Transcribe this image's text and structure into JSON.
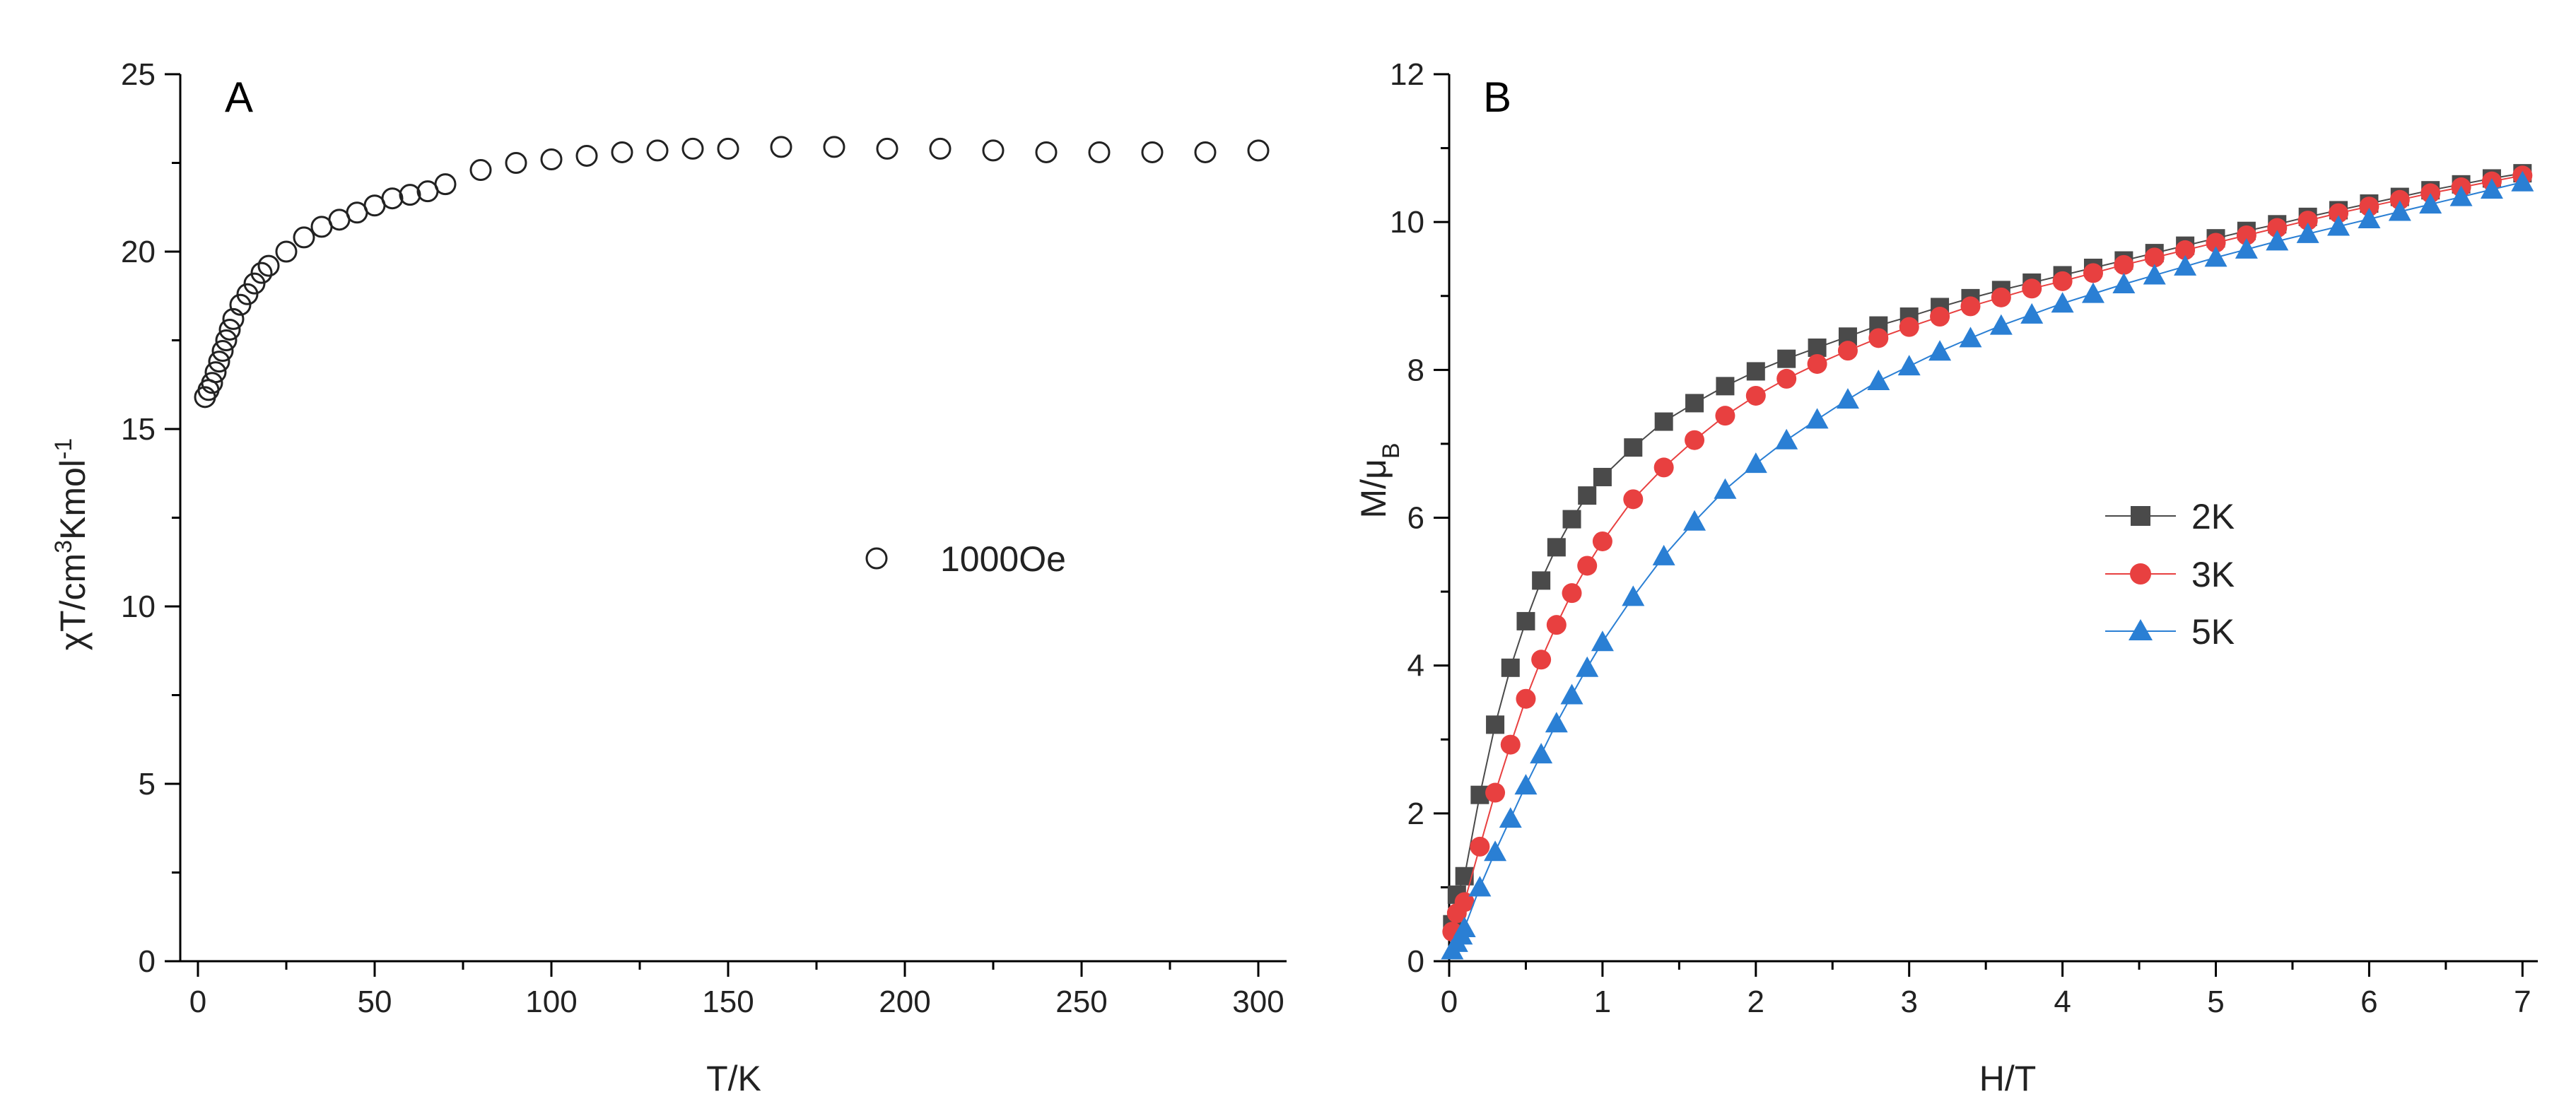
{
  "chart_data": [
    {
      "type": "scatter",
      "panel_label": "A",
      "xlabel": "T/K",
      "ylabel_parts": {
        "pre": "χT/cm",
        "sup1": "3",
        "mid": "Kmol",
        "sup2": "-1"
      },
      "xlim": [
        -5,
        308
      ],
      "ylim": [
        0,
        25
      ],
      "xticks": [
        0,
        50,
        100,
        150,
        200,
        250,
        300
      ],
      "yticks": [
        0,
        5,
        10,
        15,
        20,
        25
      ],
      "legend_position": "center-right",
      "series": [
        {
          "name": "1000Oe",
          "marker": "open-circle",
          "x": [
            2,
            3,
            4,
            5,
            6,
            7,
            8,
            9,
            10,
            12,
            14,
            16,
            18,
            20,
            25,
            30,
            35,
            40,
            45,
            50,
            55,
            60,
            65,
            70,
            80,
            90,
            100,
            110,
            120,
            130,
            140,
            150,
            165,
            180,
            195,
            210,
            225,
            240,
            255,
            270,
            285,
            300
          ],
          "y": [
            15.9,
            16.1,
            16.3,
            16.6,
            16.9,
            17.2,
            17.5,
            17.8,
            18.1,
            18.5,
            18.8,
            19.1,
            19.4,
            19.6,
            20.0,
            20.4,
            20.7,
            20.9,
            21.1,
            21.3,
            21.5,
            21.6,
            21.7,
            21.9,
            22.3,
            22.5,
            22.6,
            22.7,
            22.8,
            22.85,
            22.9,
            22.9,
            22.95,
            22.95,
            22.9,
            22.9,
            22.85,
            22.8,
            22.8,
            22.8,
            22.8,
            22.85
          ]
        }
      ]
    },
    {
      "type": "line",
      "panel_label": "B",
      "xlabel": "H/T",
      "ylabel_parts": {
        "pre": "M/μ",
        "sub": "B"
      },
      "xlim": [
        0,
        7.1
      ],
      "ylim": [
        0,
        12
      ],
      "xticks": [
        0,
        1,
        2,
        3,
        4,
        5,
        6,
        7
      ],
      "yticks": [
        0,
        2,
        4,
        6,
        8,
        10,
        12
      ],
      "legend_position": "center-right",
      "series": [
        {
          "name": "2K",
          "marker": "square",
          "color": "#4a4a4a",
          "x": [
            0.02,
            0.05,
            0.1,
            0.2,
            0.3,
            0.4,
            0.5,
            0.6,
            0.7,
            0.8,
            0.9,
            1.0,
            1.2,
            1.4,
            1.6,
            1.8,
            2.0,
            2.2,
            2.4,
            2.6,
            2.8,
            3.0,
            3.2,
            3.4,
            3.6,
            3.8,
            4.0,
            4.2,
            4.4,
            4.6,
            4.8,
            5.0,
            5.2,
            5.4,
            5.6,
            5.8,
            6.0,
            6.2,
            6.4,
            6.6,
            6.8,
            7.0
          ],
          "y": [
            0.5,
            0.9,
            1.15,
            2.25,
            3.2,
            3.97,
            4.6,
            5.15,
            5.6,
            5.98,
            6.3,
            6.55,
            6.95,
            7.3,
            7.55,
            7.78,
            7.98,
            8.15,
            8.3,
            8.45,
            8.6,
            8.72,
            8.85,
            8.97,
            9.08,
            9.18,
            9.28,
            9.38,
            9.48,
            9.58,
            9.68,
            9.78,
            9.88,
            9.97,
            10.07,
            10.16,
            10.25,
            10.34,
            10.43,
            10.51,
            10.59,
            10.66
          ]
        },
        {
          "name": "3K",
          "marker": "circle",
          "color": "#e84040",
          "x": [
            0.02,
            0.05,
            0.1,
            0.2,
            0.3,
            0.4,
            0.5,
            0.6,
            0.7,
            0.8,
            0.9,
            1.0,
            1.2,
            1.4,
            1.6,
            1.8,
            2.0,
            2.2,
            2.4,
            2.6,
            2.8,
            3.0,
            3.2,
            3.4,
            3.6,
            3.8,
            4.0,
            4.2,
            4.4,
            4.6,
            4.8,
            5.0,
            5.2,
            5.4,
            5.6,
            5.8,
            6.0,
            6.2,
            6.4,
            6.6,
            6.8,
            7.0
          ],
          "y": [
            0.4,
            0.65,
            0.8,
            1.55,
            2.28,
            2.93,
            3.55,
            4.08,
            4.55,
            4.98,
            5.35,
            5.68,
            6.25,
            6.68,
            7.05,
            7.38,
            7.65,
            7.88,
            8.08,
            8.26,
            8.43,
            8.58,
            8.72,
            8.86,
            8.98,
            9.1,
            9.2,
            9.31,
            9.42,
            9.52,
            9.62,
            9.72,
            9.82,
            9.92,
            10.02,
            10.12,
            10.21,
            10.3,
            10.39,
            10.47,
            10.55,
            10.63
          ]
        },
        {
          "name": "5K",
          "marker": "triangle",
          "color": "#2a7fd4",
          "x": [
            0.02,
            0.05,
            0.08,
            0.1,
            0.2,
            0.3,
            0.4,
            0.5,
            0.6,
            0.7,
            0.8,
            0.9,
            1.0,
            1.2,
            1.4,
            1.6,
            1.8,
            2.0,
            2.2,
            2.4,
            2.6,
            2.8,
            3.0,
            3.2,
            3.4,
            3.6,
            3.8,
            4.0,
            4.2,
            4.4,
            4.6,
            4.8,
            5.0,
            5.2,
            5.4,
            5.6,
            5.8,
            6.0,
            6.2,
            6.4,
            6.6,
            6.8,
            7.0
          ],
          "y": [
            0.15,
            0.25,
            0.35,
            0.45,
            1.0,
            1.48,
            1.93,
            2.38,
            2.8,
            3.22,
            3.6,
            3.97,
            4.32,
            4.93,
            5.48,
            5.95,
            6.38,
            6.73,
            7.05,
            7.33,
            7.6,
            7.85,
            8.05,
            8.25,
            8.43,
            8.6,
            8.75,
            8.9,
            9.03,
            9.16,
            9.28,
            9.4,
            9.52,
            9.63,
            9.74,
            9.84,
            9.94,
            10.04,
            10.14,
            10.24,
            10.34,
            10.44,
            10.54
          ]
        }
      ]
    }
  ]
}
